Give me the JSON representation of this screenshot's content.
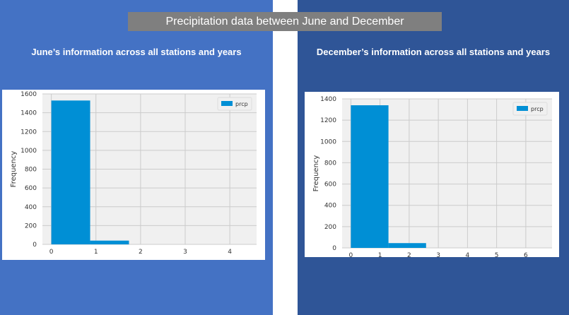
{
  "page": {
    "title": "Precipitation data between June and December",
    "left_subtitle": "June’s information across all stations and years",
    "right_subtitle": "December’s information across all stations and years"
  },
  "colors": {
    "left_panel": "#4472c4",
    "right_panel": "#2f5597",
    "title_bar": "#7f7f7f",
    "bar": "#008fd5",
    "plot_bg": "#f0f0f0",
    "grid": "#cbcbcb"
  },
  "chart_data": [
    {
      "type": "bar",
      "title": "",
      "xlabel": "",
      "ylabel": "Frequency",
      "xlim": [
        -0.2,
        4.6
      ],
      "ylim": [
        0,
        1600
      ],
      "xticks": [
        0,
        1,
        2,
        3,
        4
      ],
      "yticks": [
        0,
        200,
        400,
        600,
        800,
        1000,
        1200,
        1400,
        1600
      ],
      "grid": true,
      "legend": "top-right",
      "series": [
        {
          "name": "prcp",
          "bins": [
            [
              0,
              0.87,
              1530
            ],
            [
              0.87,
              1.74,
              40
            ]
          ]
        }
      ]
    },
    {
      "type": "bar",
      "title": "",
      "xlabel": "",
      "ylabel": "Frequency",
      "xlim": [
        -0.3,
        6.9
      ],
      "ylim": [
        0,
        1400
      ],
      "xticks": [
        0,
        1,
        2,
        3,
        4,
        5,
        6
      ],
      "yticks": [
        0,
        200,
        400,
        600,
        800,
        1000,
        1200,
        1400
      ],
      "grid": true,
      "legend": "top-right",
      "series": [
        {
          "name": "prcp",
          "bins": [
            [
              0,
              1.29,
              1340
            ],
            [
              1.29,
              2.58,
              45
            ]
          ]
        }
      ]
    }
  ]
}
